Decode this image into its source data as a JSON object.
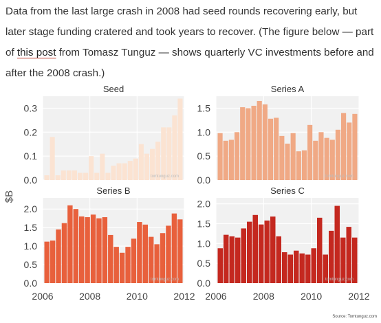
{
  "article": {
    "text_before_link": "Data from the last large crash in 2008 had seed rounds recovering early, but later stage funding cratered and took years to recover. (The figure below — part of ",
    "link_text": "this post",
    "text_after_link": " from Tomasz Tunguz — shows quarterly VC investments before and after the 2008 crash.)"
  },
  "figure": {
    "ylabel": "$B",
    "source": "Source: Tomtunguz.com",
    "watermark": "tomtunguz.com"
  },
  "chart_data": [
    {
      "type": "bar",
      "title": "Seed",
      "color": "#fbe3d2",
      "ylim": [
        0,
        0.35
      ],
      "yticks": [
        0.0,
        0.1,
        0.2,
        0.3
      ],
      "ytick_labels": [
        "0.0",
        "0.1",
        "0.2",
        "0.3"
      ],
      "values": [
        0.02,
        0.18,
        0.02,
        0.04,
        0.04,
        0.04,
        0.03,
        0.03,
        0.1,
        0.03,
        0.11,
        0.03,
        0.06,
        0.07,
        0.07,
        0.08,
        0.09,
        0.15,
        0.11,
        0.13,
        0.16,
        0.22,
        0.22,
        0.27,
        0.34
      ]
    },
    {
      "type": "bar",
      "title": "Series A",
      "color": "#f0a985",
      "ylim": [
        0,
        1.75
      ],
      "yticks": [
        0.0,
        0.5,
        1.0,
        1.5
      ],
      "ytick_labels": [
        "0.0",
        "0.5",
        "1.0",
        "1.5"
      ],
      "values": [
        0.98,
        0.82,
        0.84,
        1.0,
        1.52,
        1.5,
        1.55,
        1.65,
        1.58,
        1.28,
        1.3,
        0.92,
        0.76,
        0.98,
        0.6,
        0.62,
        1.15,
        0.82,
        1.0,
        0.88,
        0.84,
        1.05,
        1.4,
        1.2,
        1.38
      ]
    },
    {
      "type": "bar",
      "title": "Series B",
      "color": "#e8603c",
      "ylim": [
        0,
        2.3
      ],
      "yticks": [
        0.0,
        0.5,
        1.0,
        1.5,
        2.0
      ],
      "ytick_labels": [
        "0.0",
        "0.5",
        "1.0",
        "1.5",
        "2.0"
      ],
      "values": [
        1.12,
        1.15,
        1.45,
        1.62,
        2.1,
        2.0,
        1.8,
        1.78,
        1.85,
        1.75,
        1.78,
        1.3,
        0.98,
        0.82,
        0.98,
        1.2,
        1.65,
        1.58,
        1.25,
        1.05,
        1.35,
        1.55,
        1.88,
        1.72
      ]
    },
    {
      "type": "bar",
      "title": "Series C",
      "color": "#c4281f",
      "ylim": [
        0,
        2.15
      ],
      "yticks": [
        0.0,
        0.5,
        1.0,
        1.5,
        2.0
      ],
      "ytick_labels": [
        "0.0",
        "0.5",
        "1.0",
        "1.5",
        "2.0"
      ],
      "values": [
        0.88,
        1.22,
        1.18,
        1.15,
        1.38,
        1.55,
        1.72,
        1.48,
        1.58,
        1.68,
        1.18,
        0.78,
        0.72,
        0.82,
        0.75,
        0.72,
        0.88,
        1.65,
        0.72,
        1.32,
        1.95,
        1.15,
        1.42,
        1.15
      ]
    }
  ],
  "x_axis": {
    "tick_labels": [
      "2006",
      "2008",
      "2010",
      "2012"
    ],
    "tick_values": [
      2006,
      2008,
      2010,
      2012
    ],
    "range": [
      2006,
      2012
    ]
  }
}
